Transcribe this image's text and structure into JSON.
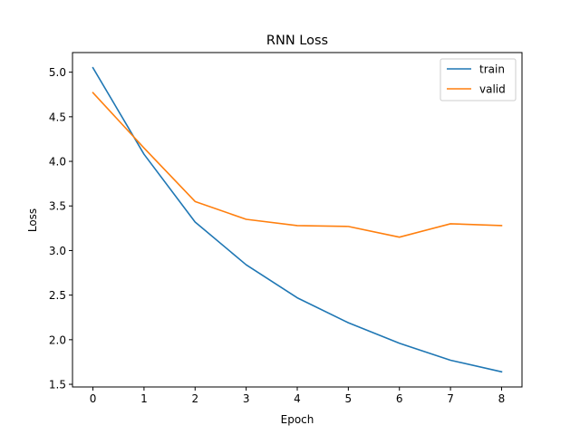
{
  "chart_data": {
    "type": "line",
    "title": "RNN Loss",
    "xlabel": "Epoch",
    "ylabel": "Loss",
    "x": [
      0,
      1,
      2,
      3,
      4,
      5,
      6,
      7,
      8
    ],
    "xlim": [
      -0.4,
      8.4
    ],
    "ylim": [
      1.47,
      5.22
    ],
    "xticks": [
      0,
      1,
      2,
      3,
      4,
      5,
      6,
      7,
      8
    ],
    "yticks": [
      1.5,
      2.0,
      2.5,
      3.0,
      3.5,
      4.0,
      4.5,
      5.0
    ],
    "ytick_labels": [
      "1.5",
      "2.0",
      "2.5",
      "3.0",
      "3.5",
      "4.0",
      "4.5",
      "5.0"
    ],
    "grid": false,
    "legend_position": "top-right",
    "series": [
      {
        "name": "train",
        "color": "#1f77b4",
        "values": [
          5.05,
          4.08,
          3.32,
          2.84,
          2.47,
          2.19,
          1.96,
          1.77,
          1.64
        ]
      },
      {
        "name": "valid",
        "color": "#ff7f0e",
        "values": [
          4.77,
          4.15,
          3.55,
          3.35,
          3.28,
          3.27,
          3.15,
          3.3,
          3.28
        ]
      }
    ]
  }
}
